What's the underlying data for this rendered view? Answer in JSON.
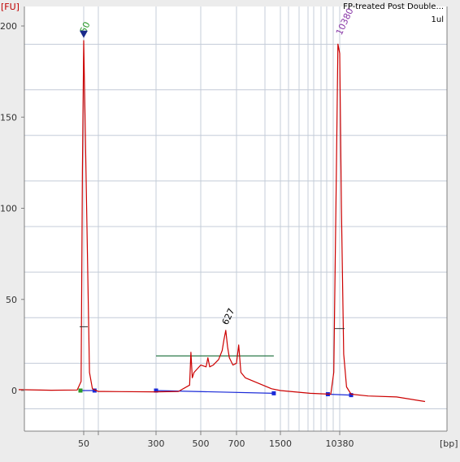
{
  "chart_data": {
    "type": "line",
    "title": "FP-treated Post Double...",
    "subtitle": "1ul",
    "ylabel": "[FU]",
    "xlabel": "[bp]",
    "ylim": [
      -20,
      200
    ],
    "y_ticks": [
      0,
      50,
      100,
      150,
      200
    ],
    "x_ticks": [
      {
        "label": "50",
        "pos": 0
      },
      {
        "label": "300",
        "pos": 1
      },
      {
        "label": "500",
        "pos": 2
      },
      {
        "label": "700",
        "pos": 3
      },
      {
        "label": "1500",
        "pos": 4
      },
      {
        "label": "10380",
        "pos": 5
      }
    ],
    "peak_labels": [
      {
        "text": "50",
        "x": 0,
        "y": 193,
        "color": "#2a9a2a"
      },
      {
        "text": "627",
        "x": 2.7,
        "y": 33,
        "color": "#000000"
      },
      {
        "text": "10380",
        "x": 5,
        "y": 192,
        "color": "#8a3aa8"
      }
    ],
    "series": [
      {
        "color": "#cc0000",
        "x": [
          -2.0,
          -1.0,
          -0.2,
          -0.08,
          -0.04,
          0.0,
          0.04,
          0.08,
          0.12,
          0.2,
          0.5,
          1.0,
          1.5,
          1.75,
          1.78,
          1.81,
          1.85,
          2.0,
          2.15,
          2.2,
          2.25,
          2.35,
          2.5,
          2.6,
          2.65,
          2.7,
          2.75,
          2.8,
          2.9,
          3.0,
          3.05,
          3.1,
          3.2,
          3.4,
          3.6,
          3.8,
          4.0,
          4.5,
          4.85,
          4.9,
          4.94,
          4.97,
          5.0,
          5.03,
          5.07,
          5.12,
          5.2,
          5.5,
          6.0,
          6.5
        ],
        "y": [
          0.5,
          0.2,
          0.3,
          5,
          120,
          192,
          100,
          10,
          1,
          -0.5,
          -0.6,
          -0.7,
          -0.5,
          3,
          21,
          7,
          10,
          14,
          13,
          18,
          13,
          14,
          17,
          22,
          28,
          33,
          24,
          18,
          14,
          15,
          25,
          10,
          7,
          5,
          3,
          1,
          0,
          -1.5,
          -2,
          10,
          110,
          190,
          185,
          100,
          20,
          2,
          -2,
          -3,
          -3.5,
          -6
        ]
      }
    ],
    "smear_marker": {
      "x_start": 1.0,
      "x_end": 3.85,
      "y": 19,
      "color": "#2e7a4a"
    },
    "baseline_marker": {
      "x": [
        -0.1,
        0.15,
        1.0,
        3.85,
        4.8,
        5.2
      ],
      "y": [
        0,
        0,
        0,
        -1.5,
        -2,
        -2.5
      ],
      "color": "#1a2ad8"
    },
    "grid": true
  }
}
